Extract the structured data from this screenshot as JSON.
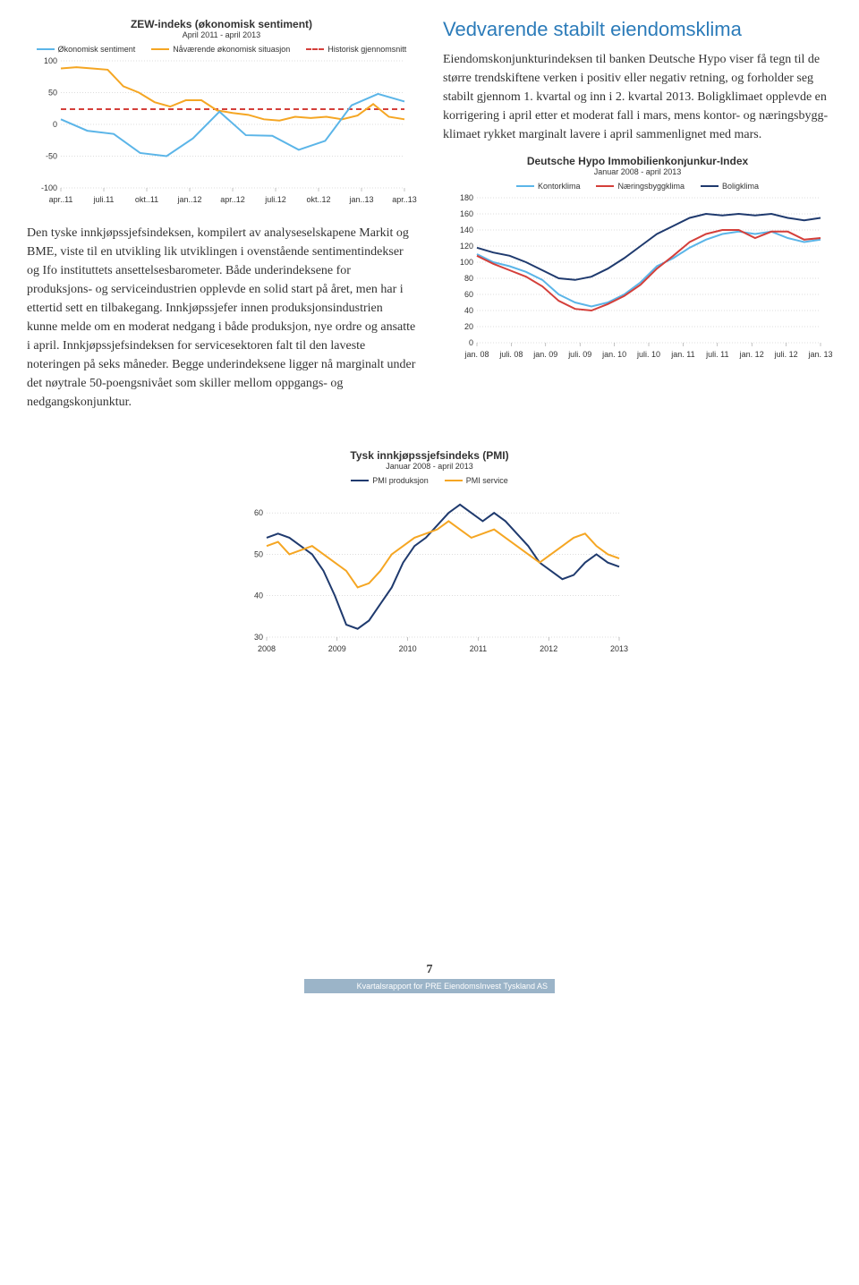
{
  "zew_chart": {
    "title": "ZEW-indeks (økonomisk sentiment)",
    "subtitle": "April 2011 - april 2013",
    "legend": [
      {
        "label": "Økonomisk sentiment",
        "color": "#5bb5e8",
        "dashed": false
      },
      {
        "label": "Nåværende økonomisk situasjon",
        "color": "#f5a623",
        "dashed": false
      },
      {
        "label": "Historisk gjennomsnitt",
        "color": "#d43f3a",
        "dashed": true
      }
    ],
    "x_labels": [
      "apr..11",
      "juli.11",
      "okt..11",
      "jan..12",
      "apr..12",
      "juli.12",
      "okt..12",
      "jan..13",
      "apr..13"
    ],
    "y_ticks": [
      -100,
      -50,
      0,
      50,
      100
    ],
    "ylim": [
      -100,
      100
    ],
    "hist_mean": 24,
    "sentiment": [
      8,
      -10,
      -15,
      -45,
      -50,
      -22,
      20,
      -17,
      -18,
      -40,
      -26,
      30,
      48,
      36
    ],
    "situation": [
      88,
      90,
      88,
      86,
      60,
      50,
      35,
      28,
      38,
      38,
      22,
      18,
      15,
      8,
      6,
      12,
      10,
      12,
      8,
      14,
      32,
      12,
      8
    ],
    "colors": {
      "bg": "#ffffff",
      "grid": "#cccccc"
    }
  },
  "left_body": "Den tyske innkjøpssjefsindeksen, kompilert av analyse­selskapene Markit og BME, viste til en utvikling lik utviklingen i ovenstående sentimentindekser og Ifo instituttets ansettelsesbarometer. Både underindeksene for produksjons- og serviceindustrien opplevde en solid start på året, men har i ettertid sett en tilbakegang. Innkjøpssjefer innen produksjonsindustrien kunne melde om en moderat nedgang i både produksjon, nye ordre og ansatte i april. Innkjøpssjefs­indeksen for servicesektoren falt til den laveste noteringen på seks måneder. Begge underindeksene ligger nå marginalt under det nøytrale 50-poengsnivået som skiller mellom oppgangs- og nedgangskonjunktur.",
  "right_heading": "Vedvarende stabilt eiendomsklima",
  "right_body": "Eiendomskonjunkturindeksen til banken Deutsche Hypo viser få tegn til de større trendskiftene verken i positiv eller negativ retning, og forholder seg stabilt gjennom 1. kvartal og inn i 2. kvartal 2013. Boligklimaet opplevde en korrigering i april etter et moderat fall i mars, mens kontor- og næringsbygg­klimaet rykket marginalt lavere i april sammenlignet med mars.",
  "hypo_chart": {
    "title": "Deutsche Hypo Immobilienkonjunkur-Index",
    "subtitle": "Januar 2008 - april 2013",
    "legend": [
      {
        "label": "Kontorklima",
        "color": "#5bb5e8"
      },
      {
        "label": "Næringsbyggklima",
        "color": "#d43f3a"
      },
      {
        "label": "Boligklima",
        "color": "#1f3a6e"
      }
    ],
    "x_labels": [
      "jan. 08",
      "juli. 08",
      "jan. 09",
      "juli. 09",
      "jan. 10",
      "juli. 10",
      "jan. 11",
      "juli. 11",
      "jan. 12",
      "juli. 12",
      "jan. 13"
    ],
    "y_ticks": [
      0,
      20,
      40,
      60,
      80,
      100,
      120,
      140,
      160,
      180
    ],
    "ylim": [
      0,
      180
    ],
    "kontor": [
      110,
      100,
      95,
      88,
      78,
      60,
      50,
      45,
      50,
      60,
      75,
      95,
      105,
      118,
      128,
      135,
      138,
      135,
      138,
      130,
      125,
      128
    ],
    "naering": [
      108,
      98,
      90,
      82,
      70,
      52,
      42,
      40,
      48,
      58,
      72,
      92,
      108,
      125,
      135,
      140,
      140,
      130,
      138,
      138,
      128,
      130
    ],
    "bolig": [
      118,
      112,
      108,
      100,
      90,
      80,
      78,
      82,
      92,
      105,
      120,
      135,
      145,
      155,
      160,
      158,
      160,
      158,
      160,
      155,
      152,
      155
    ],
    "colors": {
      "bg": "#ffffff",
      "grid": "#cccccc"
    }
  },
  "pmi_chart": {
    "title": "Tysk innkjøpssjefsindeks (PMI)",
    "subtitle": "Januar 2008 - april 2013",
    "legend": [
      {
        "label": "PMI produksjon",
        "color": "#1f3a6e"
      },
      {
        "label": "PMI service",
        "color": "#f5a623"
      }
    ],
    "x_labels": [
      "2008",
      "2009",
      "2010",
      "2011",
      "2012",
      "2013"
    ],
    "y_ticks": [
      30,
      40,
      50,
      60
    ],
    "ylim": [
      30,
      65
    ],
    "prod": [
      54,
      55,
      54,
      52,
      50,
      46,
      40,
      33,
      32,
      34,
      38,
      42,
      48,
      52,
      54,
      57,
      60,
      62,
      60,
      58,
      60,
      58,
      55,
      52,
      48,
      46,
      44,
      45,
      48,
      50,
      48,
      47
    ],
    "service": [
      52,
      53,
      50,
      51,
      52,
      50,
      48,
      46,
      42,
      43,
      46,
      50,
      52,
      54,
      55,
      56,
      58,
      56,
      54,
      55,
      56,
      54,
      52,
      50,
      48,
      50,
      52,
      54,
      55,
      52,
      50,
      49
    ],
    "colors": {
      "bg": "#ffffff",
      "grid": "#cccccc"
    }
  },
  "footer": {
    "page": "7",
    "text": "Kvartalsrapport for PRE EiendomsInvest Tyskland AS"
  }
}
